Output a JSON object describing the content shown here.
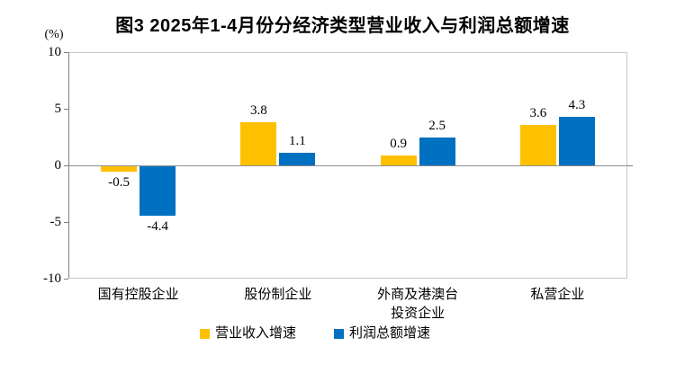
{
  "title": "图3 2025年1-4月份分经济类型营业收入与利润总额增速",
  "y_axis_unit": "(%)",
  "chart_data": {
    "type": "bar",
    "title": "图3 2025年1-4月份分经济类型营业收入与利润总额增速",
    "categories": [
      "国有控股企业",
      "股份制企业",
      "外商及港澳台\n投资企业",
      "私营企业"
    ],
    "series": [
      {
        "name": "营业收入增速",
        "color": "#FFC000",
        "values": [
          -0.5,
          3.8,
          0.9,
          3.6
        ]
      },
      {
        "name": "利润总额增速",
        "color": "#0070C0",
        "values": [
          -4.4,
          1.1,
          2.5,
          4.3
        ]
      }
    ],
    "xlabel": "",
    "ylabel": "(%)",
    "ylim": [
      -10,
      10
    ],
    "y_ticks": [
      10,
      5,
      0,
      -5,
      -10
    ],
    "grid": false,
    "legend_position": "bottom",
    "value_labels": true,
    "colors": {
      "series1": "#FFC000",
      "series2": "#0070C0",
      "axis": "#7f7f7f",
      "plot_border": "#c8c8c8"
    }
  }
}
